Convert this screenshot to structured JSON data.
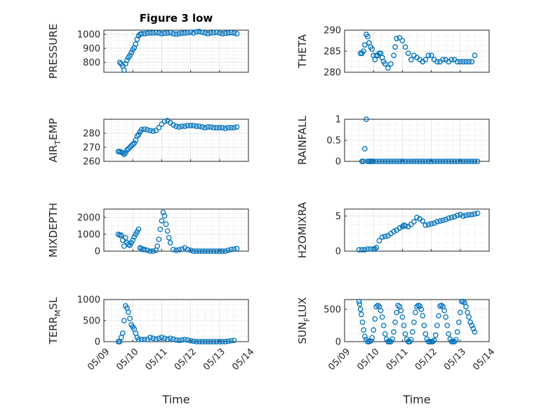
{
  "figure": {
    "title": "Figure 3 low",
    "marker_color": "#0072BD",
    "xlabel": "Time"
  },
  "chart_data": [
    {
      "id": "pressure",
      "type": "scatter",
      "title": "Figure 3 low",
      "ylabel": "PRESSURE",
      "ylabel_sub": "",
      "ylim": [
        730,
        1030
      ],
      "yticks": [
        800,
        900,
        1000
      ],
      "xlim": [
        "05/09",
        "05/10",
        "05/11",
        "05/12",
        "05/13",
        "05/14"
      ],
      "x_days": [
        0.55,
        0.6,
        0.65,
        0.7,
        0.75,
        0.8,
        0.85,
        0.9,
        0.95,
        1.0,
        1.05,
        1.1,
        1.15,
        1.2,
        1.25,
        1.3,
        1.4,
        1.5,
        1.6,
        1.7,
        1.8,
        1.9,
        2.0,
        2.1,
        2.2,
        2.3,
        2.4,
        2.5,
        2.6,
        2.7,
        2.8,
        2.9,
        3.0,
        3.1,
        3.2,
        3.3,
        3.4,
        3.5,
        3.6,
        3.7,
        3.8,
        3.9,
        4.0,
        4.1,
        4.2,
        4.3,
        4.4,
        4.5,
        4.6
      ],
      "y": [
        800,
        790,
        775,
        745,
        790,
        815,
        835,
        850,
        870,
        890,
        905,
        930,
        965,
        990,
        1000,
        1005,
        1005,
        1008,
        1010,
        1010,
        1012,
        1010,
        1005,
        1008,
        1010,
        1012,
        1005,
        1002,
        1005,
        1008,
        1010,
        1012,
        1015,
        1010,
        1018,
        1020,
        1015,
        1010,
        1005,
        1010,
        1012,
        1015,
        1010,
        1005,
        1008,
        1010,
        1012,
        1010,
        1005
      ]
    },
    {
      "id": "theta",
      "type": "scatter",
      "title": "",
      "ylabel": "THETA",
      "ylabel_sub": "",
      "ylim": [
        280,
        290
      ],
      "yticks": [
        280,
        285,
        290
      ],
      "xlim": [
        "05/09",
        "05/10",
        "05/11",
        "05/12",
        "05/13",
        "05/14"
      ],
      "x_days": [
        0.55,
        0.6,
        0.65,
        0.7,
        0.75,
        0.8,
        0.85,
        0.9,
        0.95,
        1.0,
        1.05,
        1.1,
        1.15,
        1.2,
        1.25,
        1.3,
        1.35,
        1.4,
        1.5,
        1.6,
        1.7,
        1.75,
        1.8,
        1.9,
        2.0,
        2.1,
        2.2,
        2.3,
        2.4,
        2.5,
        2.6,
        2.7,
        2.8,
        2.9,
        3.0,
        3.1,
        3.2,
        3.3,
        3.4,
        3.5,
        3.6,
        3.7,
        3.8,
        3.9,
        4.0,
        4.1,
        4.2,
        4.3,
        4.4,
        4.5
      ],
      "y": [
        284.5,
        284.5,
        285,
        286.5,
        289,
        288.5,
        287,
        286,
        285.5,
        284,
        283,
        284,
        284,
        284.5,
        284.5,
        283.5,
        282.5,
        282,
        281,
        282,
        284,
        286,
        288,
        288.2,
        287.5,
        286,
        284.5,
        283,
        284,
        283.5,
        283,
        282.5,
        283,
        284,
        284,
        283,
        282.5,
        282.5,
        283,
        283,
        282.5,
        283,
        283,
        282.5,
        282.5,
        282.5,
        282.5,
        282.5,
        282.5,
        284
      ]
    },
    {
      "id": "air_temp",
      "type": "scatter",
      "title": "",
      "ylabel": "AIR",
      "ylabel_sub": "T",
      "ylabel_suffix": "EMP",
      "ylim": [
        260,
        290
      ],
      "yticks": [
        260,
        270,
        280
      ],
      "xlim": [
        "05/09",
        "05/10",
        "05/11",
        "05/12",
        "05/13",
        "05/14"
      ],
      "x_days": [
        0.5,
        0.55,
        0.6,
        0.65,
        0.7,
        0.75,
        0.8,
        0.85,
        0.9,
        0.95,
        1.0,
        1.05,
        1.1,
        1.15,
        1.2,
        1.25,
        1.3,
        1.4,
        1.5,
        1.6,
        1.7,
        1.8,
        1.9,
        2.0,
        2.1,
        2.2,
        2.3,
        2.4,
        2.5,
        2.6,
        2.7,
        2.8,
        2.9,
        3.0,
        3.1,
        3.2,
        3.3,
        3.4,
        3.5,
        3.6,
        3.7,
        3.8,
        3.9,
        4.0,
        4.1,
        4.2,
        4.3,
        4.4,
        4.5,
        4.6
      ],
      "y": [
        267,
        267,
        266.5,
        266,
        265,
        266,
        268,
        269,
        270,
        271,
        272,
        273,
        275,
        278,
        279,
        281,
        282.5,
        283,
        282.5,
        282,
        281.5,
        282,
        284,
        286.5,
        288.5,
        289,
        287.5,
        286,
        285,
        284.5,
        285,
        285,
        285.5,
        285.5,
        285.5,
        285,
        285,
        284.5,
        284,
        284.5,
        284.5,
        284,
        284,
        284,
        284,
        283.5,
        284,
        284,
        284,
        284.5
      ]
    },
    {
      "id": "rainfall",
      "type": "scatter",
      "title": "",
      "ylabel": "RAINFALL",
      "ylabel_sub": "",
      "ylim": [
        0,
        1
      ],
      "yticks": [
        0,
        0.5,
        1
      ],
      "xlim": [
        "05/09",
        "05/10",
        "05/11",
        "05/12",
        "05/13",
        "05/14"
      ],
      "x_days": [
        0.6,
        0.65,
        0.7,
        0.75,
        0.8,
        0.85,
        0.9,
        0.95,
        1.0,
        1.1,
        1.2,
        1.3,
        1.4,
        1.5,
        1.6,
        1.7,
        1.8,
        1.9,
        2.0,
        2.1,
        2.2,
        2.3,
        2.4,
        2.5,
        2.6,
        2.7,
        2.8,
        2.9,
        3.0,
        3.1,
        3.2,
        3.3,
        3.4,
        3.5,
        3.6,
        3.7,
        3.8,
        3.9,
        4.0,
        4.1,
        4.2,
        4.3,
        4.4,
        4.5,
        4.6
      ],
      "y": [
        0,
        0,
        0.3,
        1,
        0,
        0,
        0,
        0,
        0,
        0,
        0,
        0,
        0,
        0,
        0,
        0,
        0,
        0,
        0,
        0,
        0,
        0,
        0,
        0,
        0,
        0,
        0,
        0,
        0,
        0,
        0,
        0,
        0,
        0,
        0,
        0,
        0,
        0,
        0,
        0,
        0,
        0,
        0,
        0,
        0
      ]
    },
    {
      "id": "mixdepth",
      "type": "scatter",
      "title": "",
      "ylabel": "MIXDEPTH",
      "ylabel_sub": "",
      "ylim": [
        0,
        2500
      ],
      "yticks": [
        0,
        1000,
        2000
      ],
      "xlim": [
        "05/09",
        "05/10",
        "05/11",
        "05/12",
        "05/13",
        "05/14"
      ],
      "x_days": [
        0.5,
        0.55,
        0.6,
        0.65,
        0.7,
        0.75,
        0.8,
        0.85,
        0.9,
        0.95,
        1.0,
        1.05,
        1.1,
        1.15,
        1.2,
        1.25,
        1.3,
        1.35,
        1.4,
        1.5,
        1.6,
        1.7,
        1.8,
        1.85,
        1.9,
        1.95,
        2.0,
        2.05,
        2.1,
        2.15,
        2.2,
        2.25,
        2.3,
        2.4,
        2.5,
        2.6,
        2.7,
        2.8,
        2.9,
        3.0,
        3.1,
        3.2,
        3.3,
        3.4,
        3.5,
        3.6,
        3.7,
        3.8,
        3.9,
        4.0,
        4.1,
        4.2,
        4.3,
        4.4,
        4.5,
        4.6
      ],
      "y": [
        1000,
        950,
        950,
        650,
        300,
        800,
        500,
        400,
        350,
        500,
        650,
        850,
        1000,
        1150,
        1300,
        200,
        150,
        100,
        100,
        50,
        0,
        0,
        50,
        300,
        700,
        1300,
        1800,
        2300,
        2100,
        1600,
        1200,
        800,
        500,
        100,
        50,
        80,
        120,
        200,
        100,
        50,
        0,
        0,
        0,
        0,
        0,
        0,
        0,
        0,
        0,
        0,
        0,
        0,
        50,
        100,
        120,
        150
      ]
    },
    {
      "id": "h2omixra",
      "type": "scatter",
      "title": "",
      "ylabel": "H2OMIXRA",
      "ylabel_sub": "",
      "ylim": [
        0,
        6
      ],
      "yticks": [
        0,
        5
      ],
      "xlim": [
        "05/09",
        "05/10",
        "05/11",
        "05/12",
        "05/13",
        "05/14"
      ],
      "x_days": [
        0.5,
        0.6,
        0.7,
        0.8,
        0.9,
        1.0,
        1.05,
        1.1,
        1.2,
        1.3,
        1.4,
        1.5,
        1.6,
        1.7,
        1.8,
        1.9,
        2.0,
        2.05,
        2.1,
        2.2,
        2.3,
        2.4,
        2.5,
        2.6,
        2.7,
        2.8,
        2.9,
        3.0,
        3.1,
        3.2,
        3.3,
        3.4,
        3.5,
        3.6,
        3.7,
        3.8,
        3.9,
        4.0,
        4.1,
        4.2,
        4.3,
        4.4,
        4.5,
        4.6
      ],
      "y": [
        0.2,
        0.2,
        0.2,
        0.3,
        0.3,
        0.3,
        0.3,
        0.5,
        1.5,
        2,
        2.1,
        2.2,
        2.5,
        2.8,
        3,
        3.3,
        3.5,
        3.7,
        3.6,
        3.5,
        3.8,
        4.2,
        4.8,
        4.6,
        4.3,
        3.7,
        3.8,
        3.9,
        4,
        4.2,
        4.3,
        4.4,
        4.5,
        4.7,
        4.8,
        4.9,
        5.1,
        5.2,
        5,
        5.1,
        5.2,
        5.2,
        5.3,
        5.4
      ]
    },
    {
      "id": "terr_msl",
      "type": "scatter",
      "title": "",
      "ylabel": "TERR",
      "ylabel_sub": "M",
      "ylabel_suffix": "SL",
      "ylim": [
        0,
        1000
      ],
      "yticks": [
        0,
        500,
        1000
      ],
      "xlim": [
        "05/09",
        "05/10",
        "05/11",
        "05/12",
        "05/13",
        "05/14"
      ],
      "x_days": [
        0.5,
        0.55,
        0.6,
        0.65,
        0.7,
        0.75,
        0.8,
        0.85,
        0.9,
        0.95,
        1.0,
        1.05,
        1.1,
        1.15,
        1.2,
        1.3,
        1.4,
        1.5,
        1.6,
        1.7,
        1.8,
        1.9,
        2.0,
        2.1,
        2.2,
        2.3,
        2.4,
        2.5,
        2.6,
        2.7,
        2.8,
        2.9,
        3.0,
        3.1,
        3.2,
        3.3,
        3.4,
        3.5,
        3.6,
        3.7,
        3.8,
        3.9,
        4.0,
        4.1,
        4.2,
        4.3,
        4.4,
        4.5
      ],
      "y": [
        0,
        0,
        100,
        200,
        500,
        850,
        800,
        700,
        550,
        400,
        350,
        300,
        200,
        100,
        50,
        50,
        50,
        50,
        100,
        80,
        60,
        80,
        100,
        80,
        60,
        80,
        60,
        40,
        30,
        40,
        50,
        40,
        20,
        10,
        0,
        0,
        0,
        0,
        0,
        0,
        0,
        0,
        0,
        0,
        0,
        10,
        20,
        30
      ]
    },
    {
      "id": "sun_flux",
      "type": "scatter",
      "title": "",
      "ylabel": "SUN",
      "ylabel_sub": "F",
      "ylabel_suffix": "LUX",
      "ylim": [
        0,
        650
      ],
      "yticks": [
        0,
        500
      ],
      "xlim": [
        "05/09",
        "05/10",
        "05/11",
        "05/12",
        "05/13",
        "05/14"
      ],
      "x_days": [
        0.5,
        0.52,
        0.55,
        0.58,
        0.62,
        0.66,
        0.7,
        0.75,
        0.8,
        0.85,
        0.9,
        0.95,
        1.0,
        1.05,
        1.1,
        1.15,
        1.2,
        1.25,
        1.3,
        1.35,
        1.4,
        1.45,
        1.5,
        1.55,
        1.6,
        1.65,
        1.7,
        1.75,
        1.8,
        1.85,
        1.9,
        1.95,
        2.0,
        2.05,
        2.1,
        2.15,
        2.2,
        2.25,
        2.3,
        2.35,
        2.4,
        2.45,
        2.5,
        2.55,
        2.6,
        2.65,
        2.7,
        2.75,
        2.8,
        2.85,
        2.9,
        2.95,
        3.0,
        3.05,
        3.1,
        3.15,
        3.2,
        3.25,
        3.3,
        3.35,
        3.4,
        3.45,
        3.5,
        3.55,
        3.6,
        3.65,
        3.7,
        3.75,
        3.8,
        3.85,
        3.9,
        3.95,
        4.0,
        4.05,
        4.1,
        4.15,
        4.2,
        4.25,
        4.3,
        4.35,
        4.4,
        4.45,
        4.5
      ],
      "y": [
        620,
        580,
        500,
        420,
        300,
        180,
        80,
        30,
        0,
        0,
        10,
        60,
        180,
        350,
        540,
        560,
        540,
        480,
        380,
        250,
        120,
        40,
        0,
        0,
        0,
        40,
        150,
        300,
        450,
        560,
        540,
        480,
        380,
        250,
        120,
        40,
        0,
        0,
        30,
        150,
        300,
        450,
        540,
        560,
        550,
        500,
        400,
        250,
        120,
        40,
        0,
        0,
        0,
        0,
        20,
        100,
        250,
        400,
        550,
        560,
        540,
        480,
        380,
        250,
        120,
        40,
        0,
        0,
        0,
        30,
        150,
        300,
        450,
        620,
        620,
        600,
        540,
        450,
        380,
        300,
        250,
        200,
        150
      ]
    }
  ]
}
